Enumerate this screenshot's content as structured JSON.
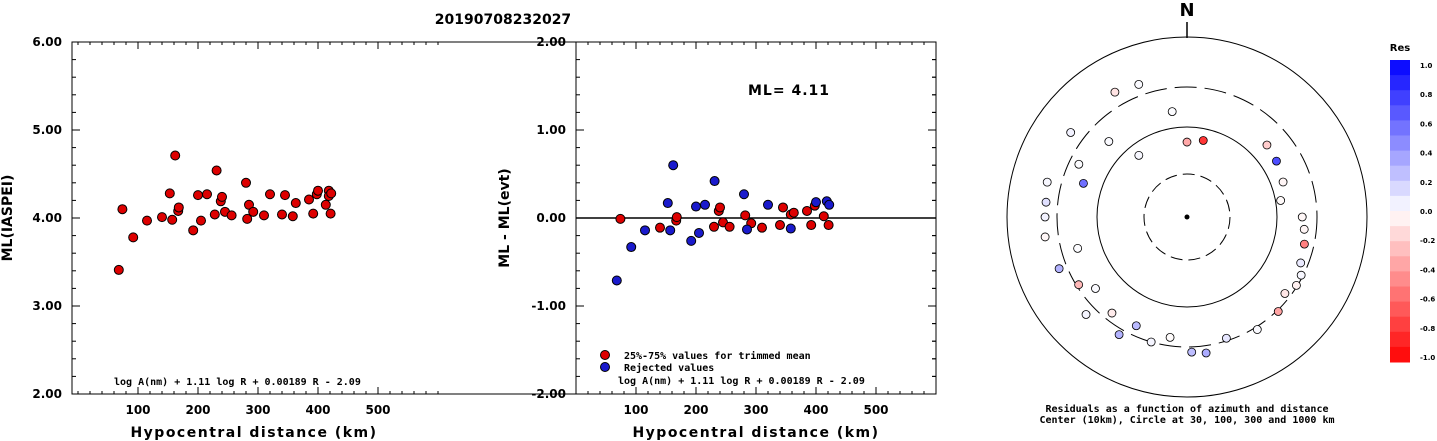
{
  "title": "20190708232027",
  "chart_data": [
    {
      "type": "scatter",
      "xlabel": "Hypocentral distance (km)",
      "ylabel": "ML(IASPEI)",
      "xlim": [
        0,
        600
      ],
      "ylim": [
        2.0,
        6.0
      ],
      "xticks": [
        100,
        200,
        300,
        400,
        500
      ],
      "yticks": [
        2.0,
        3.0,
        4.0,
        5.0,
        6.0
      ],
      "formula": "log A(nm) + 1.11 log R + 0.00189 R - 2.09",
      "series": [
        {
          "color": "#dd0000",
          "points": [
            [
              68,
              3.41
            ],
            [
              74,
              4.1
            ],
            [
              92,
              3.78
            ],
            [
              115,
              3.97
            ],
            [
              140,
              4.01
            ],
            [
              153,
              4.28
            ],
            [
              157,
              3.98
            ],
            [
              162,
              4.71
            ],
            [
              167,
              4.08
            ],
            [
              168,
              4.12
            ],
            [
              192,
              3.86
            ],
            [
              200,
              4.26
            ],
            [
              205,
              3.97
            ],
            [
              215,
              4.27
            ],
            [
              228,
              4.04
            ],
            [
              231,
              4.54
            ],
            [
              238,
              4.19
            ],
            [
              240,
              4.24
            ],
            [
              245,
              4.07
            ],
            [
              256,
              4.03
            ],
            [
              280,
              4.4
            ],
            [
              282,
              3.99
            ],
            [
              285,
              4.15
            ],
            [
              292,
              4.07
            ],
            [
              310,
              4.03
            ],
            [
              320,
              4.27
            ],
            [
              340,
              4.04
            ],
            [
              345,
              4.26
            ],
            [
              358,
              4.02
            ],
            [
              363,
              4.17
            ],
            [
              385,
              4.21
            ],
            [
              392,
              4.05
            ],
            [
              398,
              4.27
            ],
            [
              400,
              4.31
            ],
            [
              413,
              4.15
            ],
            [
              418,
              4.31
            ],
            [
              418,
              4.25
            ],
            [
              421,
              4.05
            ],
            [
              422,
              4.28
            ]
          ]
        }
      ]
    },
    {
      "type": "scatter",
      "xlabel": "Hypocentral distance (km)",
      "ylabel": "ML - ML(evt)",
      "xlim": [
        0,
        600
      ],
      "ylim": [
        -2.0,
        2.0
      ],
      "xticks": [
        100,
        200,
        300,
        400,
        500
      ],
      "yticks": [
        -2.0,
        -1.0,
        0.0,
        1.0,
        2.0
      ],
      "annotation": "ML=  4.11",
      "formula": "log A(nm) + 1.11 log R + 0.00189 R - 2.09",
      "reference_line": 0.0,
      "legend": [
        {
          "label": "25%-75% values for trimmed mean",
          "color": "#dd0000"
        },
        {
          "label": "Rejected values",
          "color": "#1a1acc"
        }
      ],
      "series": [
        {
          "name": "25%-75% values for trimmed mean",
          "color": "#dd0000",
          "points": [
            [
              74,
              -0.01
            ],
            [
              140,
              -0.11
            ],
            [
              167,
              -0.03
            ],
            [
              168,
              0.01
            ],
            [
              230,
              -0.1
            ],
            [
              238,
              0.08
            ],
            [
              240,
              0.12
            ],
            [
              245,
              -0.05
            ],
            [
              256,
              -0.1
            ],
            [
              282,
              0.03
            ],
            [
              292,
              -0.06
            ],
            [
              310,
              -0.11
            ],
            [
              340,
              -0.08
            ],
            [
              345,
              0.12
            ],
            [
              358,
              0.04
            ],
            [
              363,
              0.06
            ],
            [
              385,
              0.08
            ],
            [
              392,
              -0.08
            ],
            [
              398,
              0.14
            ],
            [
              413,
              0.02
            ],
            [
              421,
              -0.08
            ]
          ]
        },
        {
          "name": "Rejected values",
          "color": "#1a1acc",
          "points": [
            [
              68,
              -0.71
            ],
            [
              92,
              -0.33
            ],
            [
              115,
              -0.14
            ],
            [
              153,
              0.17
            ],
            [
              157,
              -0.14
            ],
            [
              162,
              0.6
            ],
            [
              192,
              -0.26
            ],
            [
              200,
              0.13
            ],
            [
              205,
              -0.17
            ],
            [
              215,
              0.15
            ],
            [
              231,
              0.42
            ],
            [
              280,
              0.27
            ],
            [
              285,
              -0.13
            ],
            [
              320,
              0.15
            ],
            [
              358,
              -0.12
            ],
            [
              400,
              0.18
            ],
            [
              418,
              0.19
            ],
            [
              422,
              0.15
            ]
          ]
        }
      ]
    },
    {
      "type": "polar-scatter",
      "north_label": "N",
      "caption_line1": "Residuals as a function of azimuth and distance",
      "caption_line2": "Center (10km), Circle at 30, 100, 300 and 1000 km",
      "colorbar": {
        "title": "Res",
        "ticks": [
          "1.0",
          "0.8",
          "0.6",
          "0.4",
          "0.2",
          "0.0",
          "-0.2",
          "-0.4",
          "-0.6",
          "-0.8",
          "-1.0"
        ],
        "max_color": "#0000ff",
        "zero_color": "#ffffff",
        "min_color": "#ff0000"
      },
      "points": [
        {
          "az": 0,
          "dist": 68,
          "res": -0.34
        },
        {
          "az": 12,
          "dist": 74,
          "res": -0.79
        },
        {
          "az": 48,
          "dist": 162,
          "res": -0.2
        },
        {
          "az": 58,
          "dist": 153,
          "res": 0.7
        },
        {
          "az": 70,
          "dist": 140,
          "res": -0.04
        },
        {
          "az": 80,
          "dist": 115,
          "res": -0.02
        },
        {
          "az": 90,
          "dist": 200,
          "res": -0.03
        },
        {
          "az": 96,
          "dist": 215,
          "res": -0.04
        },
        {
          "az": 103,
          "dist": 231,
          "res": -0.5
        },
        {
          "az": 112,
          "dist": 245,
          "res": 0.08
        },
        {
          "az": 117,
          "dist": 285,
          "res": 0.03
        },
        {
          "az": 122,
          "dist": 292,
          "res": -0.06
        },
        {
          "az": 128,
          "dist": 256,
          "res": -0.1
        },
        {
          "az": 136,
          "dist": 310,
          "res": -0.36
        },
        {
          "az": 148,
          "dist": 320,
          "res": 0.02
        },
        {
          "az": 162,
          "dist": 280,
          "res": 0.1
        },
        {
          "az": 172,
          "dist": 358,
          "res": 0.33
        },
        {
          "az": 178,
          "dist": 340,
          "res": 0.26
        },
        {
          "az": 188,
          "dist": 238,
          "res": -0.01
        },
        {
          "az": 196,
          "dist": 300,
          "res": 0.04
        },
        {
          "az": 205,
          "dist": 228,
          "res": 0.27
        },
        {
          "az": 210,
          "dist": 345,
          "res": 0.3
        },
        {
          "az": 218,
          "dist": 240,
          "res": -0.08
        },
        {
          "az": 226,
          "dist": 385,
          "res": 0.04
        },
        {
          "az": 232,
          "dist": 205,
          "res": 0.02
        },
        {
          "az": 238,
          "dist": 282,
          "res": -0.28
        },
        {
          "az": 248,
          "dist": 363,
          "res": 0.3
        },
        {
          "az": 254,
          "dist": 192,
          "res": 0.01
        },
        {
          "az": 262,
          "dist": 413,
          "res": -0.03
        },
        {
          "az": 270,
          "dist": 400,
          "res": 0.05
        },
        {
          "az": 276,
          "dist": 398,
          "res": 0.12
        },
        {
          "az": 284,
          "dist": 421,
          "res": 0.03
        },
        {
          "az": 288,
          "dist": 168,
          "res": 0.56
        },
        {
          "az": 296,
          "dist": 230,
          "res": 0.01
        },
        {
          "az": 306,
          "dist": 418,
          "res": 0.05
        },
        {
          "az": 314,
          "dist": 167,
          "res": 0.02
        },
        {
          "az": 322,
          "dist": 74,
          "res": 0.03
        },
        {
          "az": 330,
          "dist": 422,
          "res": -0.11
        },
        {
          "az": 340,
          "dist": 392,
          "res": 0.02
        },
        {
          "az": 352,
          "dist": 157,
          "res": 0.01
        }
      ]
    }
  ]
}
